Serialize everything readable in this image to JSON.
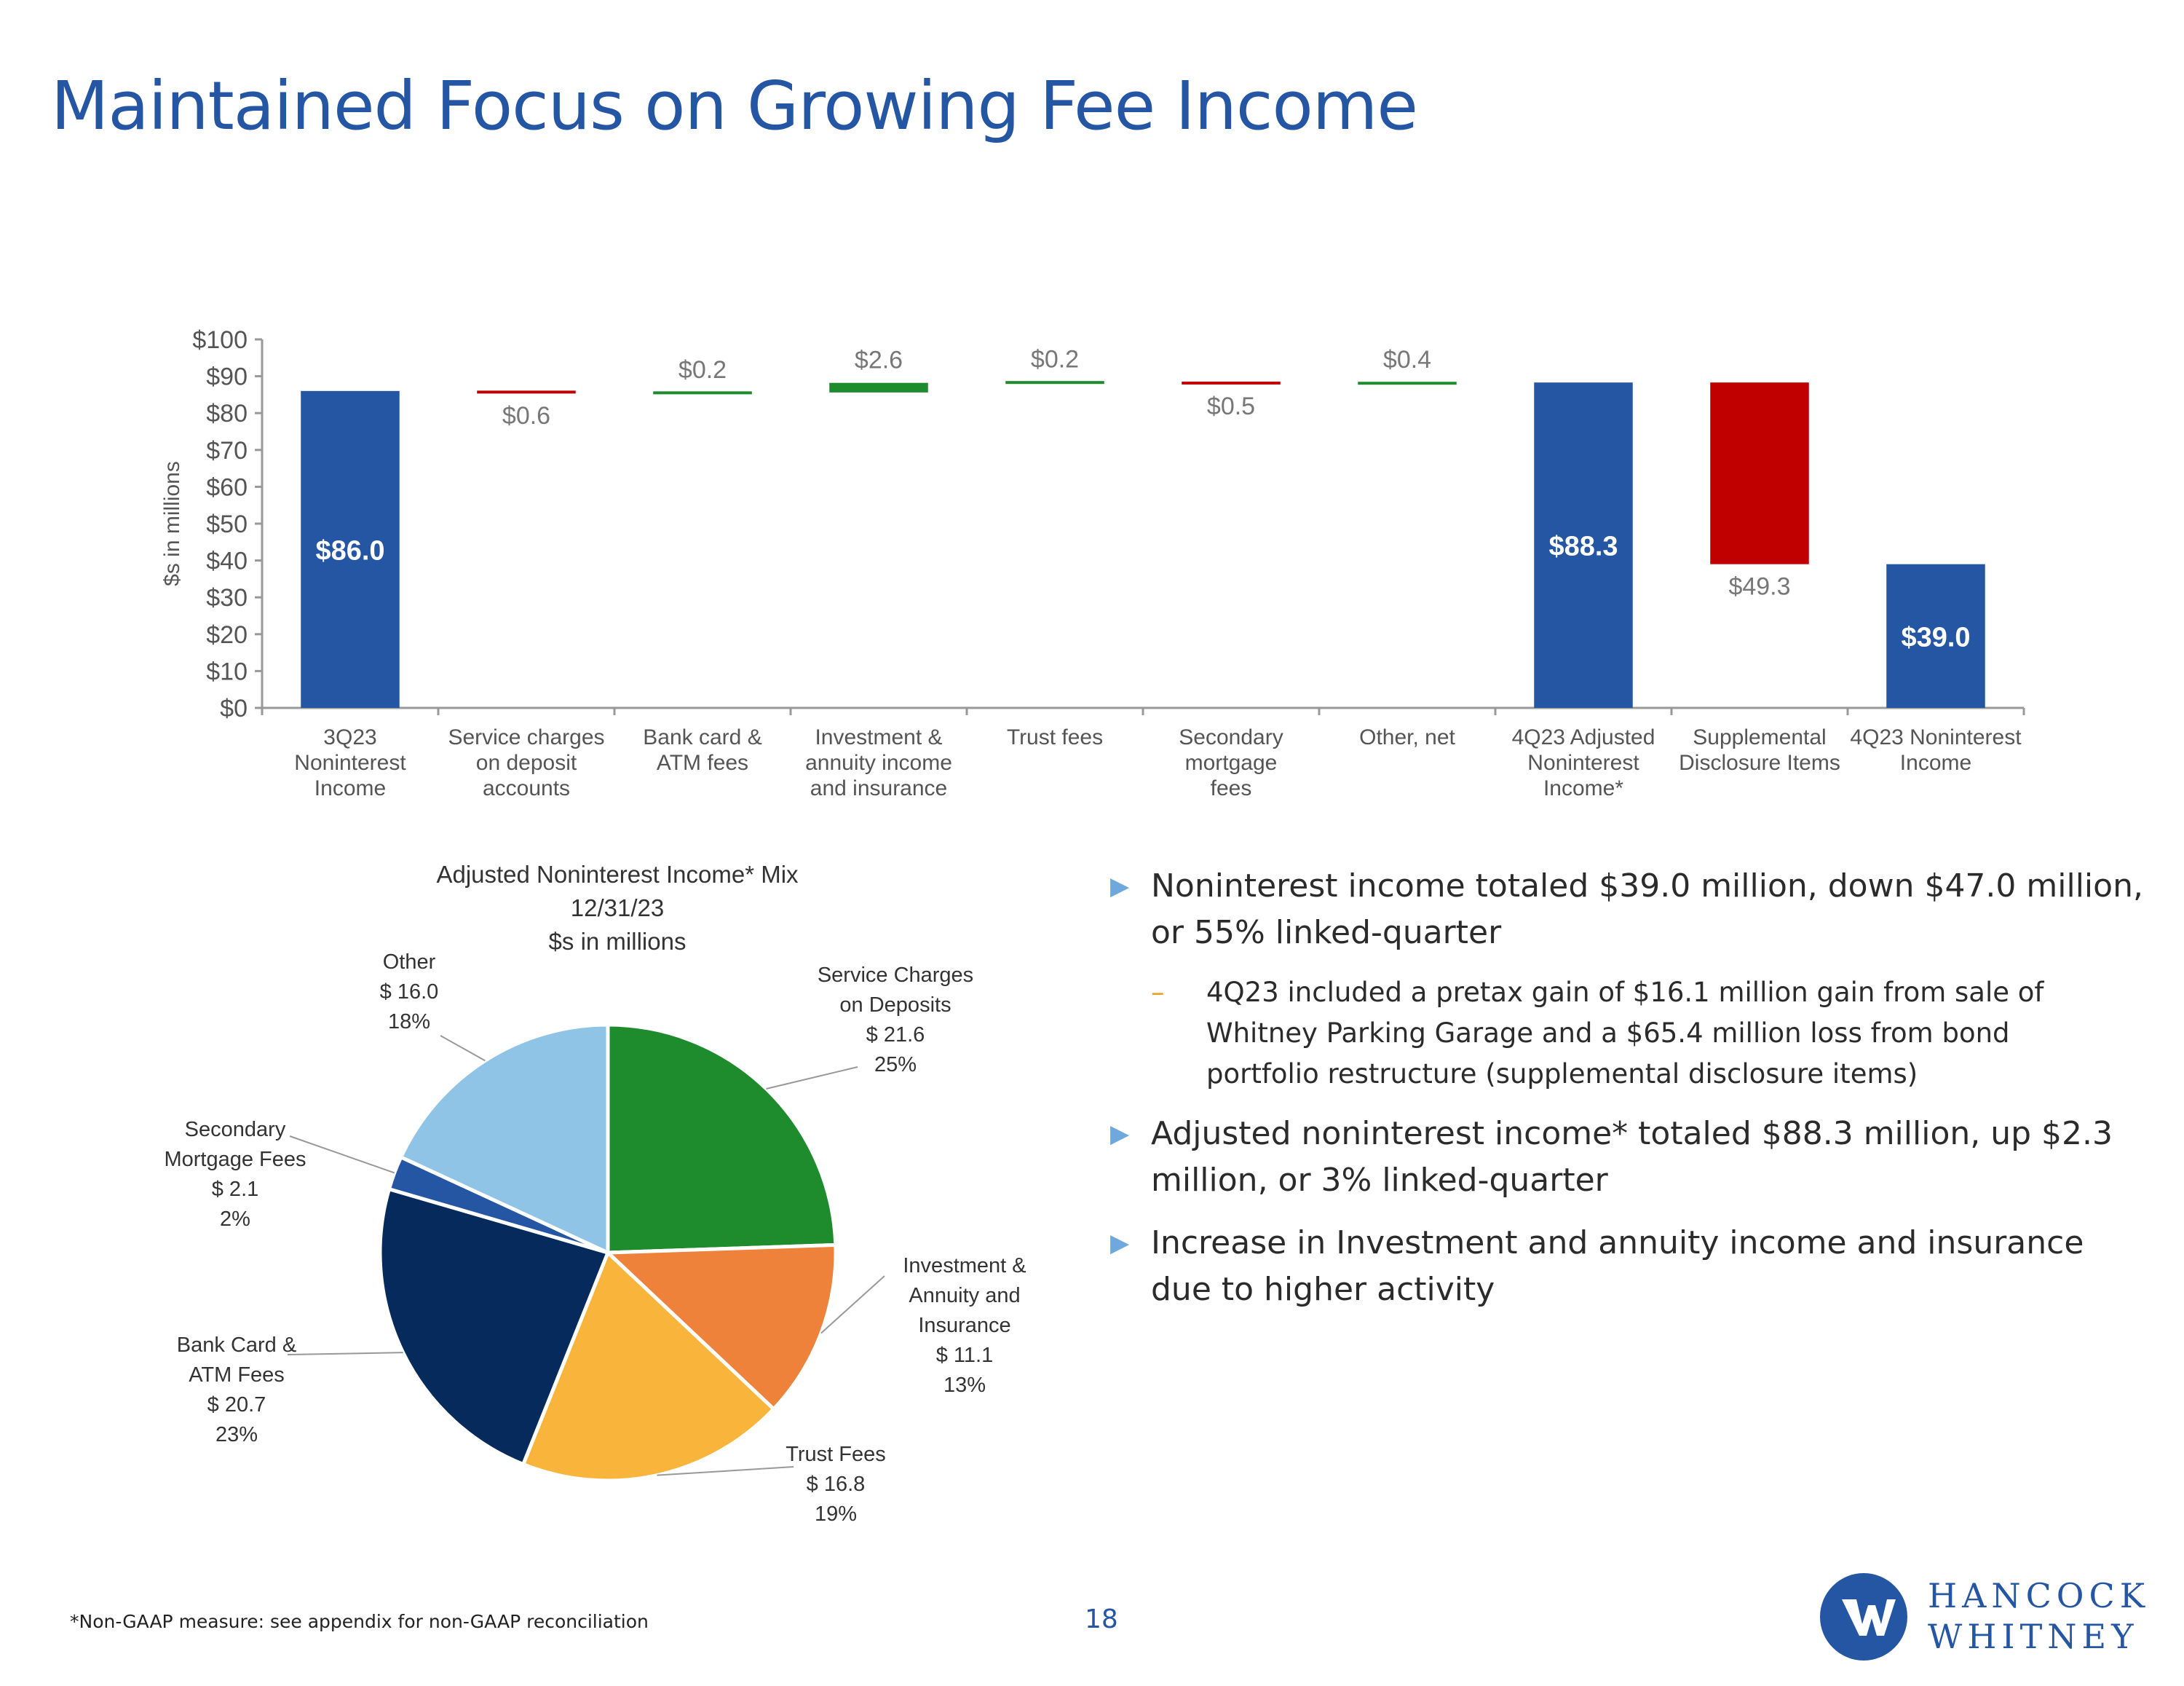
{
  "page": {
    "title": "Maintained Focus on Growing Fee Income",
    "footnote": "*Non-GAAP measure: see appendix for non-GAAP reconciliation",
    "page_number": "18"
  },
  "logo": {
    "line1": "HANCOCK",
    "line2": "WHITNEY"
  },
  "colors": {
    "title": "#2556a3",
    "total": "#2556a3",
    "increase": "#1e8b2c",
    "decrease": "#c00000",
    "bullet_arrow": "#6fa8dc",
    "sub_dash": "#f0a020"
  },
  "chart_data": [
    {
      "type": "bar",
      "subtype": "waterfall",
      "ylabel": "$s in millions",
      "ylim": [
        0,
        100
      ],
      "yticks": [
        "$0",
        "$10",
        "$20",
        "$30",
        "$40",
        "$50",
        "$60",
        "$70",
        "$80",
        "$90",
        "$100"
      ],
      "categories": [
        [
          "3Q23",
          "Noninterest",
          "Income"
        ],
        [
          "Service charges",
          "on deposit",
          "accounts"
        ],
        [
          "Bank card &",
          "ATM fees"
        ],
        [
          "Investment &",
          "annuity income",
          "and insurance"
        ],
        [
          "Trust fees"
        ],
        [
          "Secondary",
          "mortgage",
          "fees"
        ],
        [
          "Other, net"
        ],
        [
          "4Q23 Adjusted",
          "Noninterest",
          "Income*"
        ],
        [
          "Supplemental",
          "Disclosure Items"
        ],
        [
          "4Q23 Noninterest",
          "Income"
        ]
      ],
      "bars": [
        {
          "kind": "total",
          "start": 0,
          "end": 86.0,
          "label": "$86.0"
        },
        {
          "kind": "decrease",
          "start": 86.0,
          "end": 85.4,
          "label": "$0.6"
        },
        {
          "kind": "increase",
          "start": 85.4,
          "end": 85.6,
          "label": "$0.2"
        },
        {
          "kind": "increase",
          "start": 85.6,
          "end": 88.2,
          "label": "$2.6"
        },
        {
          "kind": "increase",
          "start": 88.2,
          "end": 88.4,
          "label": "$0.2"
        },
        {
          "kind": "decrease",
          "start": 88.4,
          "end": 87.9,
          "label": "$0.5"
        },
        {
          "kind": "increase",
          "start": 87.9,
          "end": 88.3,
          "label": "$0.4"
        },
        {
          "kind": "total",
          "start": 0,
          "end": 88.3,
          "label": "$88.3"
        },
        {
          "kind": "decrease",
          "start": 88.3,
          "end": 39.0,
          "label": "$49.3"
        },
        {
          "kind": "total",
          "start": 0,
          "end": 39.0,
          "label": "$39.0"
        }
      ]
    },
    {
      "type": "pie",
      "title": [
        "Adjusted Noninterest Income* Mix",
        "12/31/23",
        "$s in millions"
      ],
      "slices": [
        {
          "name": [
            "Service Charges",
            "on Deposits"
          ],
          "value": 21.6,
          "value_label": "$ 21.6",
          "pct": "25%",
          "color": "#1e8b2c"
        },
        {
          "name": [
            "Investment &",
            "Annuity and",
            "Insurance"
          ],
          "value": 11.1,
          "value_label": "$ 11.1",
          "pct": "13%",
          "color": "#ee823a"
        },
        {
          "name": [
            "Trust Fees"
          ],
          "value": 16.8,
          "value_label": "$ 16.8",
          "pct": "19%",
          "color": "#f9b53b"
        },
        {
          "name": [
            "Bank Card &",
            "ATM Fees"
          ],
          "value": 20.7,
          "value_label": "$ 20.7",
          "pct": "23%",
          "color": "#062a5b"
        },
        {
          "name": [
            "Secondary",
            "Mortgage Fees"
          ],
          "value": 2.1,
          "value_label": "$ 2.1",
          "pct": "2%",
          "color": "#2556a3"
        },
        {
          "name": [
            "Other"
          ],
          "value": 16.0,
          "value_label": "$ 16.0",
          "pct": "18%",
          "color": "#90c4e6"
        }
      ]
    }
  ],
  "bullets": [
    {
      "text": "Noninterest income totaled $39.0 million, down $47.0 million, or 55% linked-quarter"
    },
    {
      "text": "4Q23 included a pretax gain of $16.1 million gain from sale of Whitney Parking Garage and a $65.4 million loss from bond portfolio restructure (supplemental disclosure items)"
    },
    {
      "text": "Adjusted noninterest income* totaled $88.3 million, up $2.3 million, or 3% linked-quarter"
    },
    {
      "text": "Increase in Investment and annuity income and insurance due to higher activity"
    }
  ]
}
